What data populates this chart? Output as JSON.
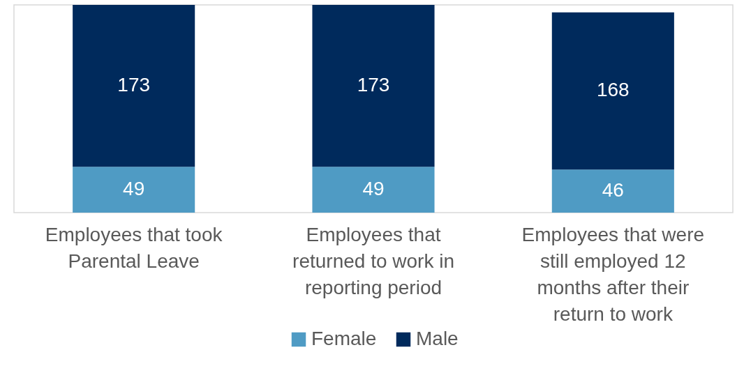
{
  "chart_data": {
    "type": "bar",
    "stacked": true,
    "data_labels": true,
    "legend": "bottom",
    "categories": [
      "Employees that took Parental Leave",
      "Employees that returned to work in reporting period",
      "Employees that were still employed 12 months after their return to work"
    ],
    "series": [
      {
        "name": "Female",
        "color": "#4f9bc4",
        "values": [
          49,
          49,
          46
        ]
      },
      {
        "name": "Male",
        "color": "#002a5c",
        "values": [
          173,
          173,
          168
        ]
      }
    ]
  }
}
